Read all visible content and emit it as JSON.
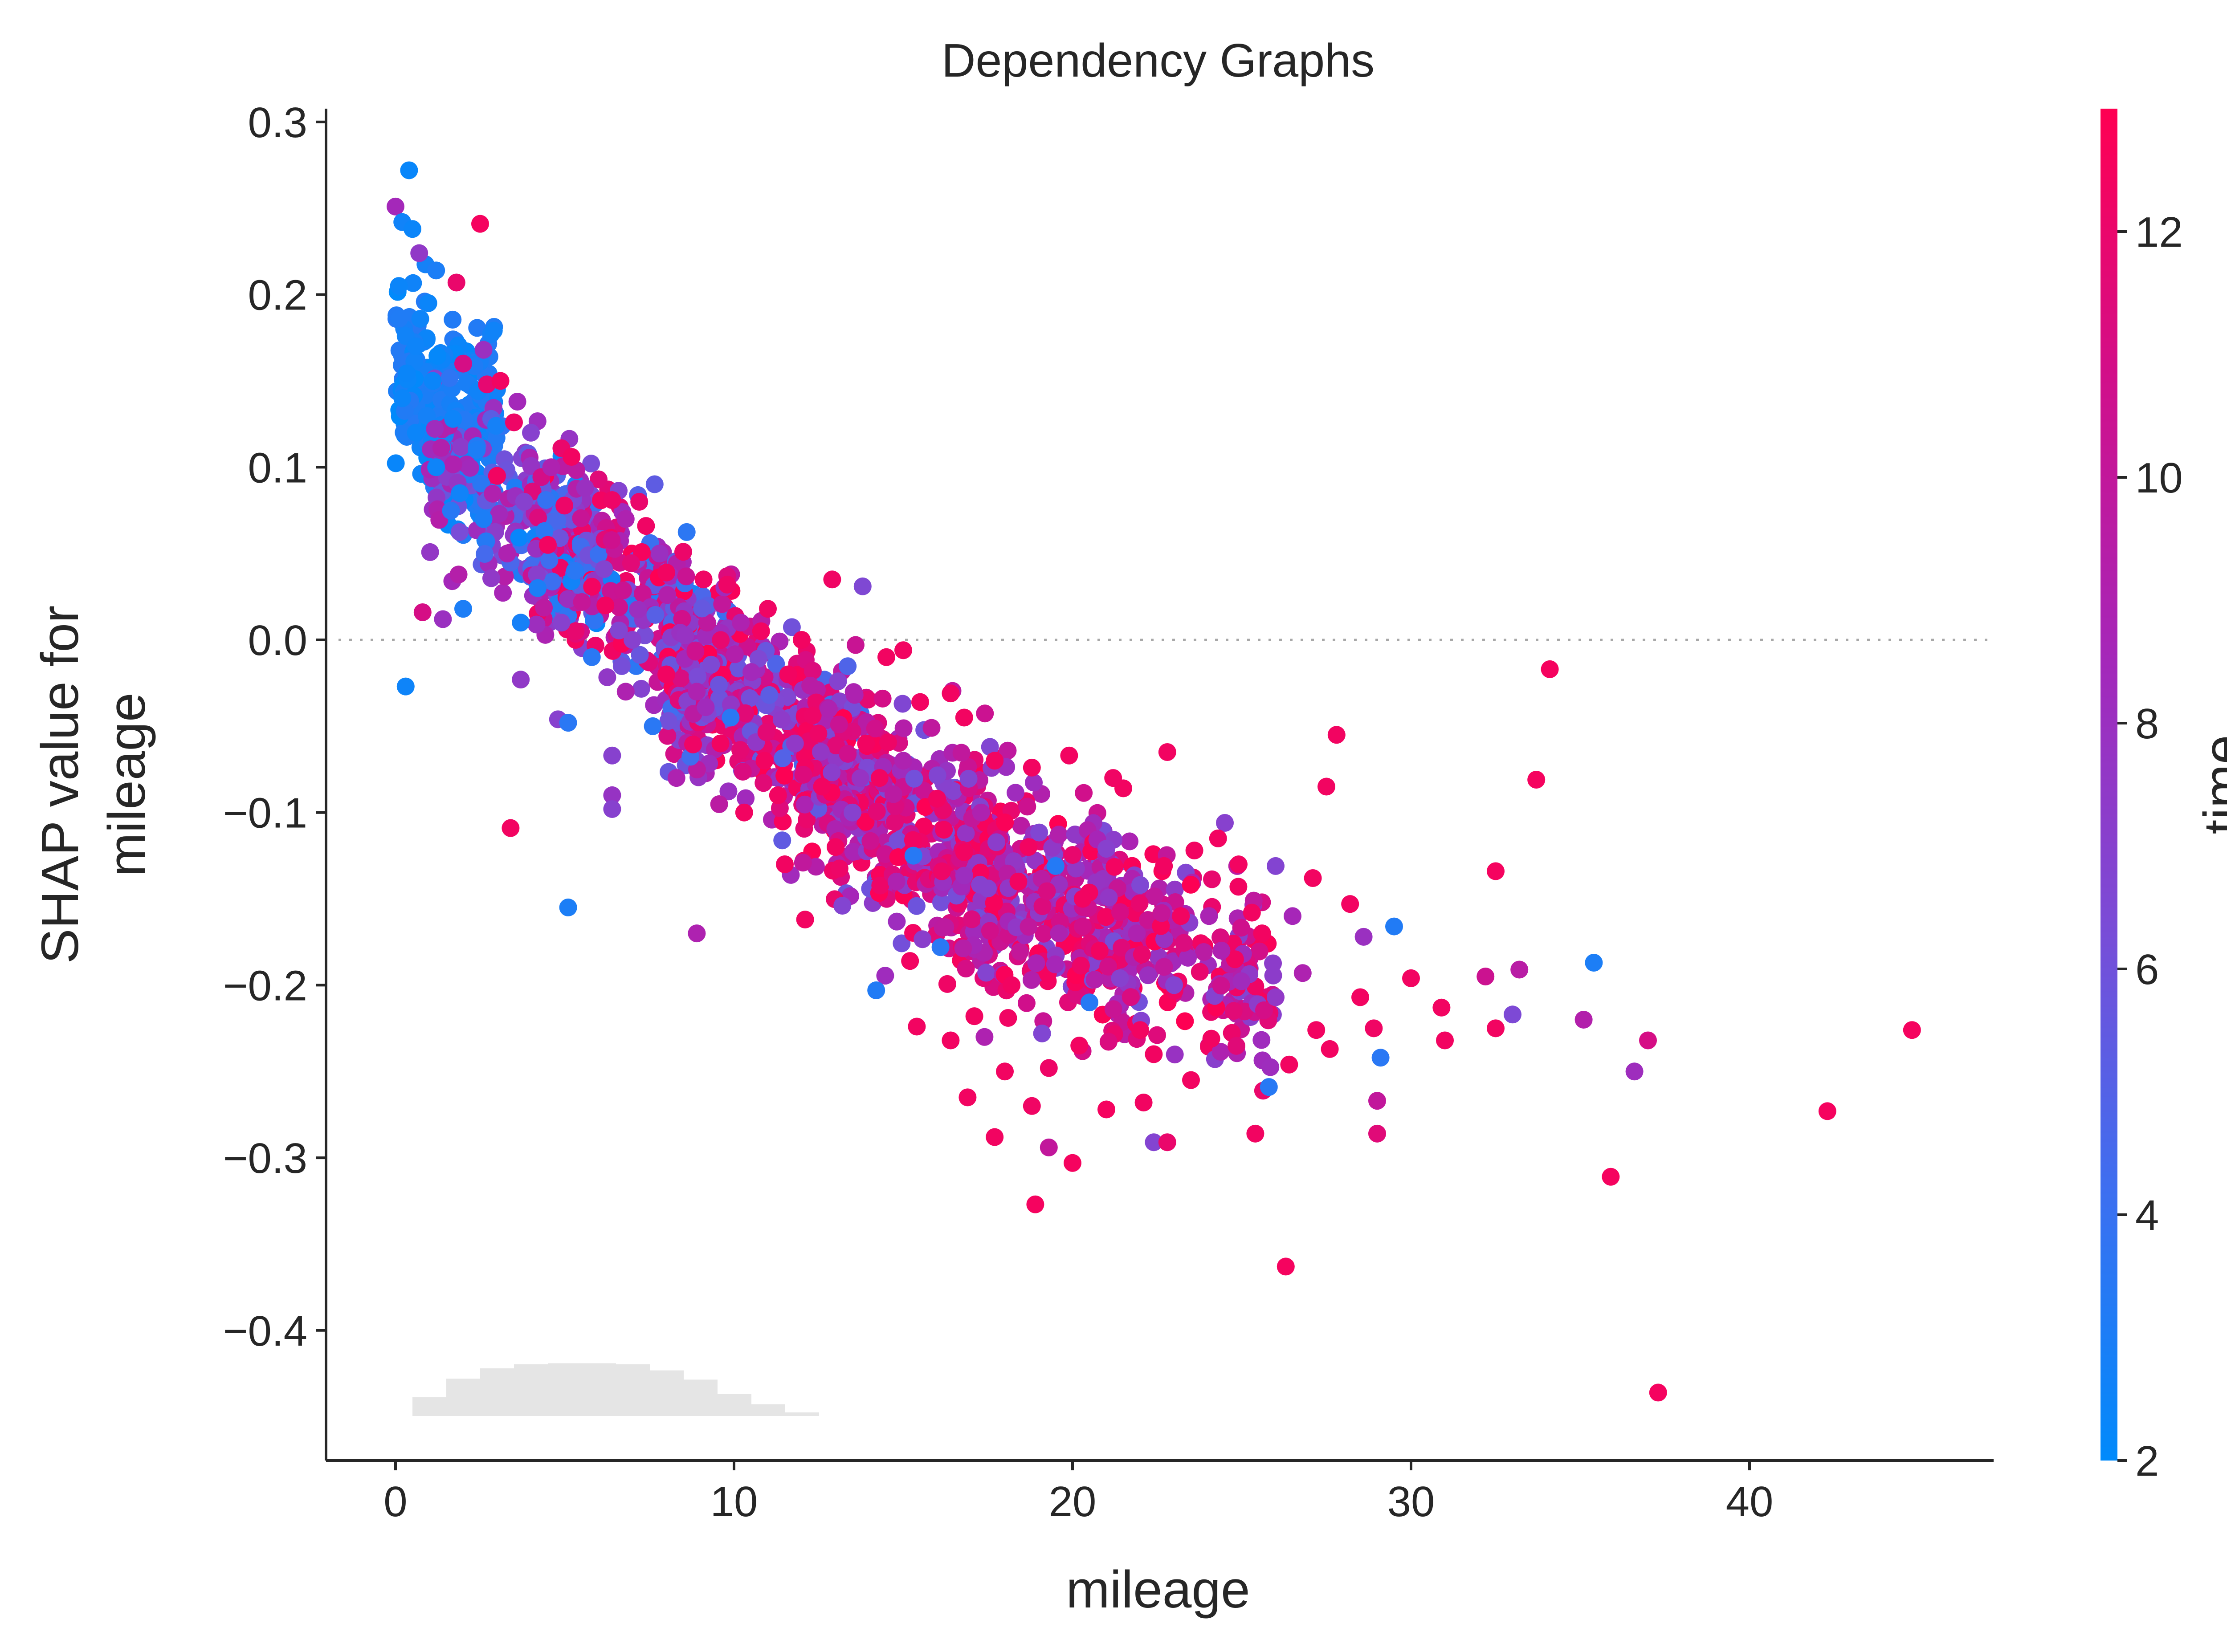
{
  "chart_data": {
    "type": "scatter",
    "title": "Dependency Graphs",
    "xlabel": "mileage",
    "ylabel": "SHAP value for\nmileage",
    "ylabel_lines": [
      "SHAP value for",
      "mileage"
    ],
    "xlim": [
      -2.2,
      47.0
    ],
    "ylim": [
      -0.475,
      0.308
    ],
    "xticks": [
      0,
      10,
      20,
      30,
      40
    ],
    "xtick_labels": [
      "0",
      "10",
      "20",
      "30",
      "40"
    ],
    "yticks": [
      0.3,
      0.2,
      0.1,
      0.0,
      -0.1,
      -0.2,
      -0.3,
      -0.4
    ],
    "ytick_labels": [
      "0.3",
      "0.2",
      "0.1",
      "0.0",
      "−0.1",
      "−0.2",
      "−0.3",
      "−0.4"
    ],
    "reference_line_y": 0.0,
    "grid": false,
    "colorbar": {
      "label": "time",
      "range": [
        2,
        13
      ],
      "ticks": [
        2,
        4,
        6,
        8,
        10,
        12
      ],
      "tick_labels": [
        "2",
        "4",
        "6",
        "8",
        "10",
        "12"
      ],
      "colormap": [
        "#008afb",
        "#3d6ff0",
        "#7b4bd6",
        "#a626b8",
        "#d10f8a",
        "#ff0052"
      ]
    },
    "histogram": {
      "bin_width": 1.0,
      "bin_starts": [
        -0.5,
        0.5,
        1.5,
        2.5,
        3.5,
        4.5,
        5.5,
        6.5,
        7.5,
        8.5,
        9.5,
        10.5,
        11.5,
        12.5,
        13.5,
        14.5,
        15.5,
        16.5,
        17.5,
        18.5,
        19.5
      ],
      "relative_heights": [
        0.27,
        0.62,
        0.8,
        0.9,
        0.94,
        0.95,
        0.95,
        0.94,
        0.88,
        0.79,
        0.65,
        0.55,
        0.47,
        0.4,
        0.33,
        0.27,
        0.2,
        0.15,
        0.1,
        0.06,
        0.03
      ],
      "color": "#e5e5e5"
    },
    "points": [
      {
        "x": 0.4,
        "y": 0.272,
        "c": 2.3
      },
      {
        "x": 0.0,
        "y": 0.251,
        "c": 8.5
      },
      {
        "x": 0.2,
        "y": 0.242,
        "c": 2.6
      },
      {
        "x": 0.5,
        "y": 0.238,
        "c": 2.4
      },
      {
        "x": 2.5,
        "y": 0.241,
        "c": 12.5
      },
      {
        "x": 1.2,
        "y": 0.214,
        "c": 3.0
      },
      {
        "x": 1.8,
        "y": 0.207,
        "c": 12.0
      },
      {
        "x": 0.1,
        "y": 0.205,
        "c": 2.4
      },
      {
        "x": 0.7,
        "y": 0.224,
        "c": 7.5
      },
      {
        "x": 0.3,
        "y": 0.176,
        "c": 2.6
      },
      {
        "x": 2.7,
        "y": 0.148,
        "c": 11.8
      },
      {
        "x": 3.5,
        "y": 0.126,
        "c": 12.2
      },
      {
        "x": 4.9,
        "y": 0.111,
        "c": 12.0
      },
      {
        "x": 5.2,
        "y": 0.106,
        "c": 12.4
      },
      {
        "x": 0.3,
        "y": -0.027,
        "c": 2.5
      },
      {
        "x": 0.8,
        "y": 0.016,
        "c": 11.0
      },
      {
        "x": 1.4,
        "y": 0.012,
        "c": 8.0
      },
      {
        "x": 3.4,
        "y": -0.109,
        "c": 12.4
      },
      {
        "x": 5.1,
        "y": -0.155,
        "c": 3.0
      },
      {
        "x": 8.9,
        "y": -0.17,
        "c": 9.0
      },
      {
        "x": 13.8,
        "y": 0.031,
        "c": 6.6
      },
      {
        "x": 14.2,
        "y": -0.203,
        "c": 3.2
      },
      {
        "x": 12.9,
        "y": 0.035,
        "c": 12.3
      },
      {
        "x": 34.1,
        "y": -0.017,
        "c": 12.5
      },
      {
        "x": 33.7,
        "y": -0.081,
        "c": 12.5
      },
      {
        "x": 27.8,
        "y": -0.055,
        "c": 12.4
      },
      {
        "x": 27.5,
        "y": -0.085,
        "c": 12.4
      },
      {
        "x": 22.8,
        "y": -0.065,
        "c": 12.4
      },
      {
        "x": 32.5,
        "y": -0.134,
        "c": 12.5
      },
      {
        "x": 33.2,
        "y": -0.191,
        "c": 9.5
      },
      {
        "x": 32.2,
        "y": -0.195,
        "c": 10.5
      },
      {
        "x": 33.0,
        "y": -0.217,
        "c": 6.5
      },
      {
        "x": 32.5,
        "y": -0.225,
        "c": 12.4
      },
      {
        "x": 35.4,
        "y": -0.187,
        "c": 3.0
      },
      {
        "x": 35.1,
        "y": -0.22,
        "c": 9.2
      },
      {
        "x": 37.0,
        "y": -0.232,
        "c": 11.0
      },
      {
        "x": 36.6,
        "y": -0.25,
        "c": 8.2
      },
      {
        "x": 44.8,
        "y": -0.226,
        "c": 12.5
      },
      {
        "x": 42.3,
        "y": -0.273,
        "c": 12.5
      },
      {
        "x": 35.9,
        "y": -0.311,
        "c": 12.5
      },
      {
        "x": 37.3,
        "y": -0.436,
        "c": 12.5
      },
      {
        "x": 31.0,
        "y": -0.232,
        "c": 12.4
      },
      {
        "x": 30.9,
        "y": -0.213,
        "c": 12.4
      },
      {
        "x": 29.5,
        "y": -0.166,
        "c": 3.2
      },
      {
        "x": 29.1,
        "y": -0.242,
        "c": 3.5
      },
      {
        "x": 29.0,
        "y": -0.267,
        "c": 10.0
      },
      {
        "x": 29.0,
        "y": -0.286,
        "c": 11.5
      },
      {
        "x": 26.3,
        "y": -0.363,
        "c": 12.5
      },
      {
        "x": 25.8,
        "y": -0.259,
        "c": 3.4
      },
      {
        "x": 25.4,
        "y": -0.286,
        "c": 12.4
      },
      {
        "x": 22.4,
        "y": -0.291,
        "c": 6.8
      },
      {
        "x": 22.8,
        "y": -0.291,
        "c": 12.0
      },
      {
        "x": 18.9,
        "y": -0.327,
        "c": 12.5
      },
      {
        "x": 20.0,
        "y": -0.303,
        "c": 12.5
      },
      {
        "x": 19.3,
        "y": -0.294,
        "c": 10.0
      },
      {
        "x": 18.8,
        "y": -0.27,
        "c": 12.3
      },
      {
        "x": 17.7,
        "y": -0.288,
        "c": 12.4
      },
      {
        "x": 16.9,
        "y": -0.265,
        "c": 12.4
      },
      {
        "x": 21.0,
        "y": -0.272,
        "c": 12.5
      },
      {
        "x": 22.1,
        "y": -0.268,
        "c": 12.4
      },
      {
        "x": 26.0,
        "y": -0.207,
        "c": 7.5
      },
      {
        "x": 26.4,
        "y": -0.246,
        "c": 12.4
      },
      {
        "x": 24.5,
        "y": -0.106,
        "c": 7.0
      },
      {
        "x": 26.0,
        "y": -0.131,
        "c": 6.8
      },
      {
        "x": 26.5,
        "y": -0.16,
        "c": 8.6
      },
      {
        "x": 21.5,
        "y": -0.086,
        "c": 12.4
      },
      {
        "x": 21.2,
        "y": -0.08,
        "c": 12.3
      },
      {
        "x": 19.9,
        "y": -0.067,
        "c": 12.4
      },
      {
        "x": 18.8,
        "y": -0.074,
        "c": 12.4
      },
      {
        "x": 17.7,
        "y": -0.07,
        "c": 12.4
      },
      {
        "x": 16.8,
        "y": -0.045,
        "c": 12.4
      },
      {
        "x": 16.4,
        "y": -0.031,
        "c": 12.4
      },
      {
        "x": 15.5,
        "y": -0.036,
        "c": 12.4
      },
      {
        "x": 15.0,
        "y": -0.006,
        "c": 12.4
      },
      {
        "x": 14.5,
        "y": -0.01,
        "c": 12.4
      },
      {
        "x": 12.0,
        "y": -0.0,
        "c": 12.4
      },
      {
        "x": 11.0,
        "y": 0.018,
        "c": 12.3
      },
      {
        "x": 10.8,
        "y": 0.005,
        "c": 12.4
      },
      {
        "x": 9.8,
        "y": 0.032,
        "c": 12.2
      },
      {
        "x": 8.5,
        "y": 0.051,
        "c": 12.1
      },
      {
        "x": 7.4,
        "y": 0.066,
        "c": 12.3
      },
      {
        "x": 7.2,
        "y": 0.08,
        "c": 12.0
      },
      {
        "x": 6.0,
        "y": 0.093,
        "c": 11.5
      },
      {
        "x": 6.4,
        "y": 0.081,
        "c": 12.2
      },
      {
        "x": 4.4,
        "y": 0.063,
        "c": 3.5
      },
      {
        "x": 8.0,
        "y": 0.039,
        "c": 12.4
      },
      {
        "x": 6.4,
        "y": -0.067,
        "c": 7.0
      },
      {
        "x": 6.4,
        "y": -0.09,
        "c": 7.8
      },
      {
        "x": 6.4,
        "y": -0.098,
        "c": 7.0
      },
      {
        "x": 4.8,
        "y": -0.046,
        "c": 7.0
      },
      {
        "x": 5.1,
        "y": -0.048,
        "c": 3.5
      },
      {
        "x": 3.7,
        "y": -0.023,
        "c": 7.5
      },
      {
        "x": 3.7,
        "y": 0.01,
        "c": 2.8
      },
      {
        "x": 2.0,
        "y": 0.018,
        "c": 3.0
      },
      {
        "x": 10.3,
        "y": -0.1,
        "c": 12.4
      },
      {
        "x": 11.5,
        "y": -0.13,
        "c": 12.4
      },
      {
        "x": 12.1,
        "y": -0.162,
        "c": 12.4
      },
      {
        "x": 13.2,
        "y": -0.154,
        "c": 6.8
      },
      {
        "x": 15.2,
        "y": -0.186,
        "c": 12.4
      },
      {
        "x": 16.1,
        "y": -0.178,
        "c": 3.5
      },
      {
        "x": 15.4,
        "y": -0.224,
        "c": 12.4
      },
      {
        "x": 16.4,
        "y": -0.232,
        "c": 12.4
      },
      {
        "x": 17.1,
        "y": -0.218,
        "c": 12.4
      },
      {
        "x": 18.0,
        "y": -0.25,
        "c": 12.4
      },
      {
        "x": 19.1,
        "y": -0.228,
        "c": 6.7
      },
      {
        "x": 19.3,
        "y": -0.248,
        "c": 12.2
      },
      {
        "x": 20.2,
        "y": -0.235,
        "c": 12.4
      },
      {
        "x": 20.5,
        "y": -0.21,
        "c": 3.4
      },
      {
        "x": 21.4,
        "y": -0.196,
        "c": 7.0
      },
      {
        "x": 22.0,
        "y": -0.226,
        "c": 12.4
      },
      {
        "x": 22.4,
        "y": -0.24,
        "c": 12.4
      },
      {
        "x": 23.5,
        "y": -0.255,
        "c": 12.4
      },
      {
        "x": 24.1,
        "y": -0.231,
        "c": 12.4
      },
      {
        "x": 23.0,
        "y": -0.2,
        "c": 6.8
      },
      {
        "x": 24.8,
        "y": -0.185,
        "c": 12.4
      },
      {
        "x": 27.2,
        "y": -0.226,
        "c": 12.4
      },
      {
        "x": 27.6,
        "y": -0.237,
        "c": 12.4
      },
      {
        "x": 28.5,
        "y": -0.207,
        "c": 12.4
      },
      {
        "x": 28.9,
        "y": -0.225,
        "c": 12.3
      },
      {
        "x": 28.6,
        "y": -0.172,
        "c": 8.0
      },
      {
        "x": 30.0,
        "y": -0.196,
        "c": 12.4
      },
      {
        "x": 28.2,
        "y": -0.153,
        "c": 12.4
      },
      {
        "x": 27.1,
        "y": -0.138,
        "c": 12.4
      },
      {
        "x": 26.8,
        "y": -0.193,
        "c": 9.0
      },
      {
        "x": 25.3,
        "y": -0.158,
        "c": 12.4
      },
      {
        "x": 24.9,
        "y": -0.143,
        "c": 12.4
      },
      {
        "x": 23.6,
        "y": -0.122,
        "c": 12.4
      },
      {
        "x": 24.3,
        "y": -0.115,
        "c": 12.4
      },
      {
        "x": 22.7,
        "y": -0.131,
        "c": 12.4
      },
      {
        "x": 22.0,
        "y": -0.142,
        "c": 6.6
      },
      {
        "x": 21.0,
        "y": -0.121,
        "c": 7.0
      },
      {
        "x": 20.3,
        "y": -0.15,
        "c": 12.4
      },
      {
        "x": 19.5,
        "y": -0.131,
        "c": 3.3
      },
      {
        "x": 18.7,
        "y": -0.12,
        "c": 12.4
      },
      {
        "x": 17.5,
        "y": -0.144,
        "c": 7.0
      },
      {
        "x": 16.8,
        "y": -0.123,
        "c": 12.4
      },
      {
        "x": 16.0,
        "y": -0.092,
        "c": 12.4
      },
      {
        "x": 15.3,
        "y": -0.125,
        "c": 3.4
      },
      {
        "x": 14.3,
        "y": -0.08,
        "c": 12.4
      },
      {
        "x": 13.5,
        "y": -0.1,
        "c": 7.0
      },
      {
        "x": 12.6,
        "y": -0.085,
        "c": 12.4
      },
      {
        "x": 11.8,
        "y": -0.06,
        "c": 7.5
      },
      {
        "x": 10.9,
        "y": -0.07,
        "c": 12.4
      },
      {
        "x": 9.9,
        "y": -0.045,
        "c": 3.5
      },
      {
        "x": 8.9,
        "y": -0.03,
        "c": 9.0
      },
      {
        "x": 8.0,
        "y": -0.02,
        "c": 12.4
      },
      {
        "x": 7.0,
        "y": 0.0,
        "c": 7.0
      },
      {
        "x": 6.2,
        "y": 0.02,
        "c": 12.4
      },
      {
        "x": 5.3,
        "y": 0.04,
        "c": 3.5
      },
      {
        "x": 4.5,
        "y": 0.055,
        "c": 12.4
      },
      {
        "x": 3.8,
        "y": 0.08,
        "c": 7.0
      },
      {
        "x": 3.0,
        "y": 0.095,
        "c": 12.4
      },
      {
        "x": 2.4,
        "y": 0.11,
        "c": 3.0
      },
      {
        "x": 1.7,
        "y": 0.128,
        "c": 2.5
      },
      {
        "x": 1.1,
        "y": 0.15,
        "c": 2.4
      },
      {
        "x": 0.6,
        "y": 0.17,
        "c": 2.5
      },
      {
        "x": 2.0,
        "y": 0.16,
        "c": 11.0
      },
      {
        "x": 2.6,
        "y": 0.168,
        "c": 8.0
      },
      {
        "x": 3.1,
        "y": 0.15,
        "c": 12.4
      },
      {
        "x": 3.6,
        "y": 0.138,
        "c": 8.5
      },
      {
        "x": 4.0,
        "y": 0.12,
        "c": 7.0
      },
      {
        "x": 4.6,
        "y": 0.1,
        "c": 9.0
      },
      {
        "x": 5.6,
        "y": 0.088,
        "c": 8.0
      },
      {
        "x": 6.8,
        "y": 0.07,
        "c": 9.0
      },
      {
        "x": 7.8,
        "y": 0.05,
        "c": 8.0
      },
      {
        "x": 9.1,
        "y": 0.035,
        "c": 12.3
      },
      {
        "x": 10.2,
        "y": 0.01,
        "c": 9.0
      },
      {
        "x": 11.6,
        "y": -0.02,
        "c": 12.4
      },
      {
        "x": 12.8,
        "y": -0.04,
        "c": 9.0
      },
      {
        "x": 13.9,
        "y": -0.06,
        "c": 12.4
      },
      {
        "x": 15.0,
        "y": -0.07,
        "c": 9.0
      },
      {
        "x": 16.2,
        "y": -0.11,
        "c": 12.4
      },
      {
        "x": 17.3,
        "y": -0.1,
        "c": 9.0
      },
      {
        "x": 18.4,
        "y": -0.14,
        "c": 12.4
      },
      {
        "x": 19.6,
        "y": -0.17,
        "c": 9.0
      },
      {
        "x": 20.8,
        "y": -0.18,
        "c": 12.4
      },
      {
        "x": 21.9,
        "y": -0.17,
        "c": 9.0
      },
      {
        "x": 23.2,
        "y": -0.16,
        "c": 12.4
      },
      {
        "x": 24.4,
        "y": -0.18,
        "c": 9.0
      },
      {
        "x": 25.6,
        "y": -0.17,
        "c": 12.4
      },
      {
        "x": 17.4,
        "y": -0.23,
        "c": 9.0
      },
      {
        "x": 18.2,
        "y": -0.2,
        "c": 12.4
      },
      {
        "x": 14.8,
        "y": -0.14,
        "c": 9.0
      },
      {
        "x": 13.0,
        "y": -0.12,
        "c": 12.4
      },
      {
        "x": 11.3,
        "y": -0.09,
        "c": 12.4
      },
      {
        "x": 9.6,
        "y": -0.06,
        "c": 12.4
      },
      {
        "x": 8.3,
        "y": -0.08,
        "c": 9.0
      },
      {
        "x": 7.6,
        "y": -0.05,
        "c": 3.5
      },
      {
        "x": 6.8,
        "y": -0.03,
        "c": 9.0
      },
      {
        "x": 5.8,
        "y": -0.01,
        "c": 3.5
      },
      {
        "x": 4.9,
        "y": 0.01,
        "c": 7.0
      },
      {
        "x": 4.2,
        "y": 0.03,
        "c": 3.0
      },
      {
        "x": 3.3,
        "y": 0.05,
        "c": 9.0
      },
      {
        "x": 2.6,
        "y": 0.07,
        "c": 3.0
      },
      {
        "x": 1.9,
        "y": 0.085,
        "c": 2.6
      },
      {
        "x": 1.2,
        "y": 0.1,
        "c": 2.5
      },
      {
        "x": 0.6,
        "y": 0.12,
        "c": 2.4
      },
      {
        "x": 0.2,
        "y": 0.14,
        "c": 2.4
      }
    ],
    "cloud": [
      {
        "x0": 0.0,
        "x1": 3.0,
        "yc": 0.135,
        "spread": 0.055,
        "n": 240,
        "cmin": 2.0,
        "cmax": 3.4
      },
      {
        "x0": 1.0,
        "x1": 6.0,
        "yc": 0.075,
        "spread": 0.045,
        "n": 220,
        "cmin": 2.0,
        "cmax": 9.5
      },
      {
        "x0": 4.0,
        "x1": 10.0,
        "yc": 0.025,
        "spread": 0.045,
        "n": 340,
        "cmin": 2.5,
        "cmax": 13.0
      },
      {
        "x0": 8.0,
        "x1": 14.0,
        "yc": -0.045,
        "spread": 0.05,
        "n": 420,
        "cmin": 4.0,
        "cmax": 13.0
      },
      {
        "x0": 12.0,
        "x1": 18.0,
        "yc": -0.105,
        "spread": 0.055,
        "n": 420,
        "cmin": 5.5,
        "cmax": 13.0
      },
      {
        "x0": 16.0,
        "x1": 22.0,
        "yc": -0.15,
        "spread": 0.055,
        "n": 360,
        "cmin": 6.0,
        "cmax": 13.0
      },
      {
        "x0": 20.0,
        "x1": 26.0,
        "yc": -0.175,
        "spread": 0.045,
        "n": 200,
        "cmin": 6.5,
        "cmax": 13.0
      }
    ]
  }
}
